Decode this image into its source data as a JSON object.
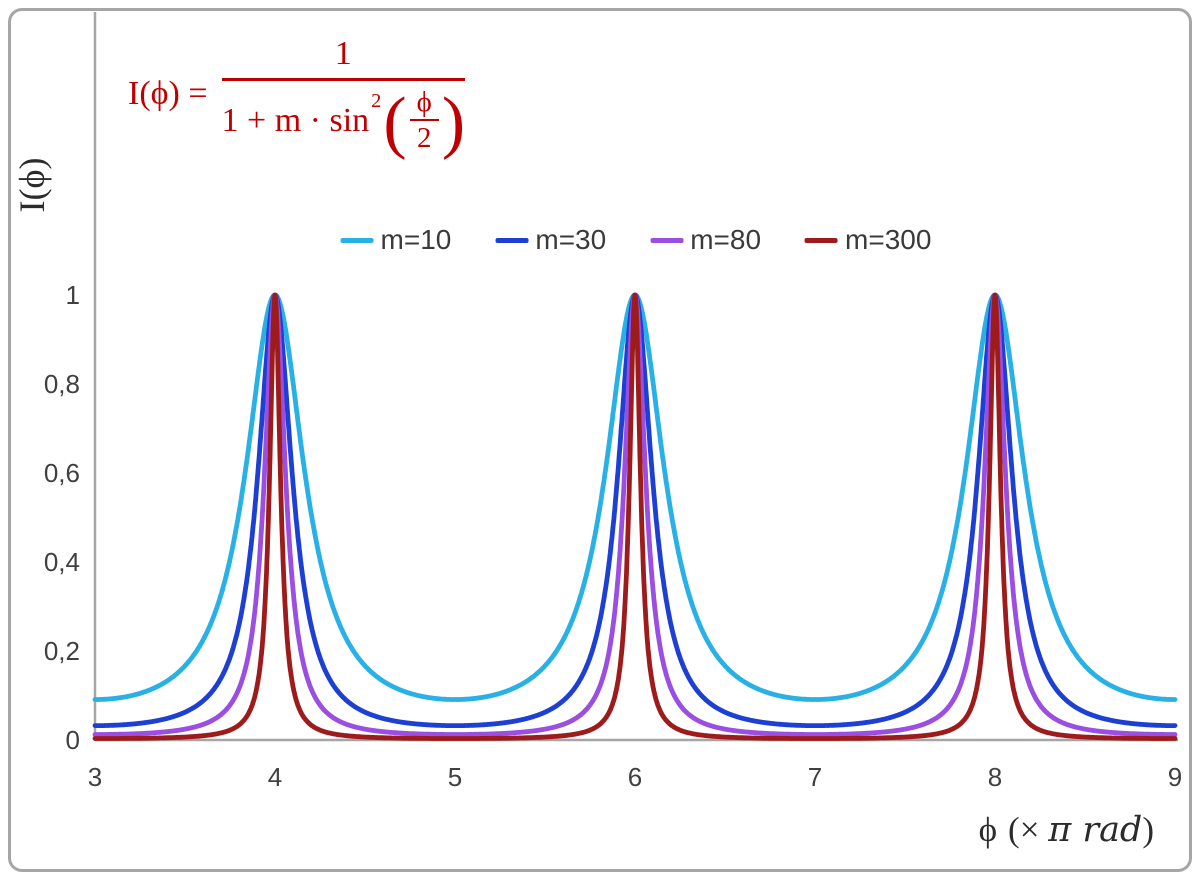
{
  "colors": {
    "background": "#ffffff",
    "frame_gray": "#a6a6a6",
    "axis_gray": "#a6a6a6",
    "tick_text": "#404040",
    "legend_text": "#3a3a3a",
    "title_text": "#2b2b2b",
    "formula_red": "#c00000"
  },
  "formula": {
    "lhs": "I(ϕ) =",
    "numerator": "1",
    "den_text": "1 + m · sin",
    "den_exp": "2",
    "lparen": "(",
    "rparen": ")",
    "inner_num": "ϕ",
    "inner_den": "2"
  },
  "labels": {
    "y_title": "I(ϕ)",
    "x_title_phi": "ϕ",
    "x_title_mid": "(× ",
    "x_title_italic": "π rad",
    "x_title_post": ")"
  },
  "chart_data": {
    "type": "line",
    "title": "",
    "function": "I(phi) = 1 / (1 + m * sin^2(phi/2))",
    "x_units": "multiples of pi rad",
    "grid": false,
    "x_axis": {
      "label": "ϕ (× π rad)",
      "min": 3,
      "max": 9,
      "tick_labels": [
        "3",
        "4",
        "5",
        "6",
        "7",
        "8",
        "9"
      ],
      "tick_values": [
        3,
        4,
        5,
        6,
        7,
        8,
        9
      ]
    },
    "y_axis": {
      "label": "I(ϕ)",
      "min": 0,
      "max": 1,
      "tick_labels": [
        "1",
        "0,8",
        "0,6",
        "0,4",
        "0,2",
        "0"
      ],
      "tick_values": [
        1,
        0.8,
        0.6,
        0.4,
        0.2,
        0
      ]
    },
    "peaks_at_x": [
      4,
      6,
      8
    ],
    "legend": {
      "position": "top-center",
      "entries": [
        "m=10",
        "m=30",
        "m=80",
        "m=300"
      ]
    },
    "sample_x": [
      3,
      3.5,
      4,
      4.5,
      5,
      5.5,
      6,
      6.5,
      7,
      7.5,
      8,
      8.5,
      9
    ],
    "series": [
      {
        "name": "m=10",
        "m": 10,
        "color": "#29b1e6",
        "sample_I": [
          0.091,
          0.167,
          1,
          0.167,
          0.091,
          0.167,
          1,
          0.167,
          0.091,
          0.167,
          1,
          0.167,
          0.091
        ]
      },
      {
        "name": "m=30",
        "m": 30,
        "color": "#1e3fd4",
        "sample_I": [
          0.032,
          0.063,
          1,
          0.063,
          0.032,
          0.063,
          1,
          0.063,
          0.032,
          0.063,
          1,
          0.063,
          0.032
        ]
      },
      {
        "name": "m=80",
        "m": 80,
        "color": "#9b4ee2",
        "sample_I": [
          0.012,
          0.024,
          1,
          0.024,
          0.012,
          0.024,
          1,
          0.024,
          0.012,
          0.024,
          1,
          0.024,
          0.012
        ]
      },
      {
        "name": "m=300",
        "m": 300,
        "color": "#9e1b1b",
        "sample_I": [
          0.003,
          0.007,
          1,
          0.007,
          0.003,
          0.007,
          1,
          0.007,
          0.003,
          0.007,
          1,
          0.007,
          0.003
        ]
      }
    ]
  }
}
